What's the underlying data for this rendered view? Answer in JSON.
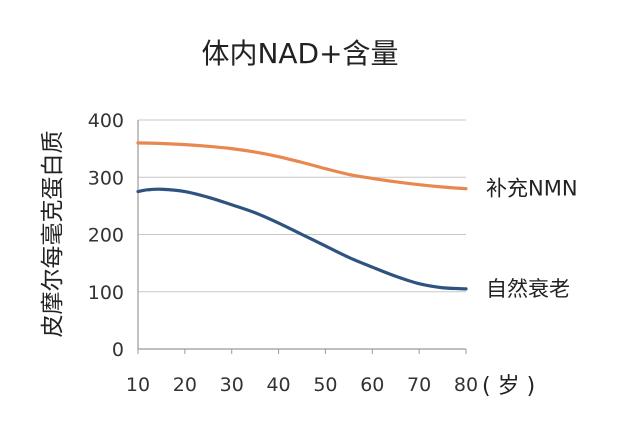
{
  "chart_data": {
    "type": "line",
    "title": "体内NAD+含量",
    "xlabel": "( 岁 )",
    "ylabel": "皮摩尔每毫克蛋白质",
    "xlim": [
      10,
      80
    ],
    "ylim": [
      0,
      400
    ],
    "x_ticks": [
      10,
      20,
      30,
      40,
      50,
      60,
      70,
      80
    ],
    "y_ticks": [
      0,
      100,
      200,
      300,
      400
    ],
    "grid": true,
    "legend": "inline-right",
    "series": [
      {
        "name": "补充NMN",
        "color": "#E8874F",
        "x": [
          10,
          15,
          20,
          25,
          30,
          35,
          40,
          45,
          50,
          55,
          60,
          65,
          70,
          75,
          80
        ],
        "y": [
          360,
          359,
          357,
          354,
          350,
          344,
          336,
          326,
          315,
          305,
          298,
          292,
          287,
          283,
          280
        ]
      },
      {
        "name": "自然衰老",
        "color": "#2E5380",
        "x": [
          10,
          12,
          15,
          20,
          25,
          30,
          35,
          40,
          45,
          50,
          55,
          60,
          65,
          70,
          75,
          80
        ],
        "y": [
          275,
          278,
          279,
          275,
          265,
          252,
          238,
          220,
          200,
          180,
          160,
          143,
          127,
          114,
          107,
          105
        ]
      }
    ]
  }
}
